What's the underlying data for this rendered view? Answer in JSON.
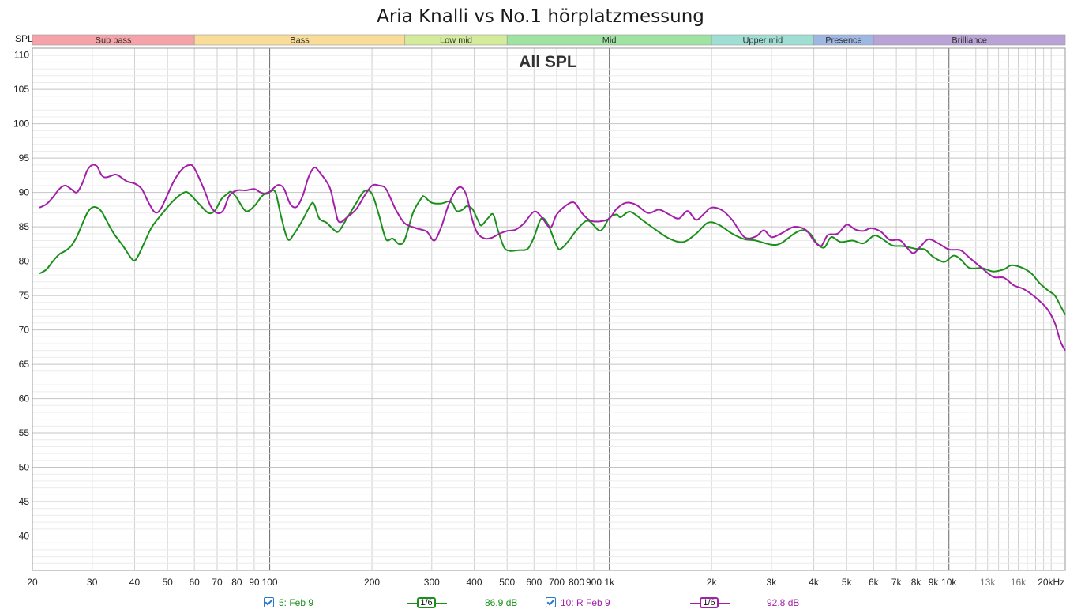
{
  "title": "Aria Knalli vs No.1 hörplatzmessung",
  "chart_data": {
    "type": "line",
    "title": "Aria Knalli vs No.1 hörplatzmessung",
    "subtitle": "All SPL",
    "ylabel": "SPL",
    "xscale": "log",
    "xunit": "Hz",
    "xlim": [
      20,
      22000
    ],
    "ylim": [
      35,
      111
    ],
    "yticks": [
      40,
      45,
      50,
      55,
      60,
      65,
      70,
      75,
      80,
      85,
      90,
      95,
      100,
      105,
      110
    ],
    "xticks": [
      {
        "v": 20,
        "label": "20"
      },
      {
        "v": 30,
        "label": "30"
      },
      {
        "v": 40,
        "label": "40"
      },
      {
        "v": 50,
        "label": "50"
      },
      {
        "v": 60,
        "label": "60"
      },
      {
        "v": 70,
        "label": "70"
      },
      {
        "v": 80,
        "label": "80"
      },
      {
        "v": 90,
        "label": "90"
      },
      {
        "v": 100,
        "label": "100"
      },
      {
        "v": 200,
        "label": "200"
      },
      {
        "v": 300,
        "label": "300"
      },
      {
        "v": 400,
        "label": "400"
      },
      {
        "v": 500,
        "label": "500"
      },
      {
        "v": 600,
        "label": "600"
      },
      {
        "v": 700,
        "label": "700"
      },
      {
        "v": 800,
        "label": "800"
      },
      {
        "v": 900,
        "label": "900"
      },
      {
        "v": 1000,
        "label": "1k"
      },
      {
        "v": 2000,
        "label": "2k"
      },
      {
        "v": 3000,
        "label": "3k"
      },
      {
        "v": 4000,
        "label": "4k"
      },
      {
        "v": 5000,
        "label": "5k"
      },
      {
        "v": 6000,
        "label": "6k"
      },
      {
        "v": 7000,
        "label": "7k"
      },
      {
        "v": 8000,
        "label": "8k"
      },
      {
        "v": 9000,
        "label": "9k"
      },
      {
        "v": 10000,
        "label": "10k"
      },
      {
        "v": 13000,
        "label": "13k",
        "minor": true
      },
      {
        "v": 16000,
        "label": "16k",
        "minor": true
      },
      {
        "v": 20000,
        "label": "20kHz"
      }
    ],
    "bands": [
      {
        "name": "Sub bass",
        "from": 20,
        "to": 60,
        "color": "#f5a3a8"
      },
      {
        "name": "Bass",
        "from": 60,
        "to": 250,
        "color": "#f9dc97"
      },
      {
        "name": "Low mid",
        "from": 250,
        "to": 500,
        "color": "#d4eb9c"
      },
      {
        "name": "Mid",
        "from": 500,
        "to": 2000,
        "color": "#9fe3a3"
      },
      {
        "name": "Upper mid",
        "from": 2000,
        "to": 4000,
        "color": "#9fded3"
      },
      {
        "name": "Presence",
        "from": 4000,
        "to": 6000,
        "color": "#9fb8e3"
      },
      {
        "name": "Brilliance",
        "from": 6000,
        "to": 22000,
        "color": "#b9a3d6"
      }
    ],
    "series": [
      {
        "name": "5: Feb 9",
        "color": "#1a8f1a",
        "smoothing": "1/6",
        "level": "86,9 dB",
        "points": [
          [
            21,
            78.2
          ],
          [
            22,
            78.8
          ],
          [
            23,
            80
          ],
          [
            24,
            81
          ],
          [
            25,
            81.5
          ],
          [
            26,
            82.2
          ],
          [
            27,
            83.5
          ],
          [
            28,
            85.3
          ],
          [
            29,
            87
          ],
          [
            30,
            87.8
          ],
          [
            31,
            87.8
          ],
          [
            32,
            87.2
          ],
          [
            33,
            86
          ],
          [
            34,
            84.8
          ],
          [
            35,
            83.8
          ],
          [
            37,
            82.2
          ],
          [
            39,
            80.5
          ],
          [
            40,
            80.1
          ],
          [
            41,
            80.8
          ],
          [
            43,
            83
          ],
          [
            45,
            85
          ],
          [
            48,
            86.8
          ],
          [
            52,
            88.8
          ],
          [
            56,
            90
          ],
          [
            58,
            89.8
          ],
          [
            62,
            88.3
          ],
          [
            66,
            87
          ],
          [
            69,
            87.4
          ],
          [
            72,
            89
          ],
          [
            75,
            89.8
          ],
          [
            77,
            90.1
          ],
          [
            80,
            89.2
          ],
          [
            85,
            87.3
          ],
          [
            90,
            88
          ],
          [
            95,
            89.5
          ],
          [
            100,
            90.1
          ],
          [
            104,
            90
          ],
          [
            108,
            86.5
          ],
          [
            113,
            83.2
          ],
          [
            118,
            84
          ],
          [
            125,
            86
          ],
          [
            132,
            88.2
          ],
          [
            135,
            88.3
          ],
          [
            140,
            86.2
          ],
          [
            147,
            85.6
          ],
          [
            155,
            84.5
          ],
          [
            160,
            84.4
          ],
          [
            170,
            86.5
          ],
          [
            180,
            88.5
          ],
          [
            190,
            90.2
          ],
          [
            200,
            89.8
          ],
          [
            210,
            86.6
          ],
          [
            220,
            83.2
          ],
          [
            230,
            83.3
          ],
          [
            240,
            82.5
          ],
          [
            248,
            82.8
          ],
          [
            255,
            84.5
          ],
          [
            265,
            87.2
          ],
          [
            280,
            89.2
          ],
          [
            285,
            89.4
          ],
          [
            300,
            88.5
          ],
          [
            320,
            88.4
          ],
          [
            335,
            88.7
          ],
          [
            345,
            88.4
          ],
          [
            355,
            87.3
          ],
          [
            370,
            87.5
          ],
          [
            380,
            88
          ],
          [
            395,
            87.6
          ],
          [
            410,
            86
          ],
          [
            420,
            85.2
          ],
          [
            440,
            86.3
          ],
          [
            455,
            86.8
          ],
          [
            470,
            84.5
          ],
          [
            490,
            82
          ],
          [
            510,
            81.5
          ],
          [
            540,
            81.6
          ],
          [
            575,
            81.8
          ],
          [
            600,
            83.5
          ],
          [
            630,
            86.2
          ],
          [
            660,
            85.3
          ],
          [
            700,
            82.2
          ],
          [
            720,
            81.8
          ],
          [
            760,
            83
          ],
          [
            800,
            84.5
          ],
          [
            850,
            85.8
          ],
          [
            880,
            85.7
          ],
          [
            930,
            84.5
          ],
          [
            960,
            84.8
          ],
          [
            1000,
            86.3
          ],
          [
            1050,
            86.8
          ],
          [
            1080,
            86.4
          ],
          [
            1150,
            87.2
          ],
          [
            1250,
            86
          ],
          [
            1350,
            84.8
          ],
          [
            1500,
            83.3
          ],
          [
            1650,
            82.8
          ],
          [
            1800,
            84
          ],
          [
            1950,
            85.6
          ],
          [
            2100,
            85.3
          ],
          [
            2300,
            84
          ],
          [
            2500,
            83.2
          ],
          [
            2700,
            83
          ],
          [
            3000,
            82.4
          ],
          [
            3200,
            82.6
          ],
          [
            3500,
            84
          ],
          [
            3700,
            84.5
          ],
          [
            3900,
            84
          ],
          [
            4100,
            82.5
          ],
          [
            4300,
            82
          ],
          [
            4500,
            83.5
          ],
          [
            4800,
            82.8
          ],
          [
            5200,
            83
          ],
          [
            5600,
            82.6
          ],
          [
            6000,
            83.7
          ],
          [
            6300,
            83.4
          ],
          [
            6800,
            82.3
          ],
          [
            7300,
            82.2
          ],
          [
            8000,
            81.8
          ],
          [
            8500,
            81.7
          ],
          [
            9000,
            80.6
          ],
          [
            9700,
            79.9
          ],
          [
            10300,
            80.8
          ],
          [
            10800,
            80.3
          ],
          [
            11500,
            79
          ],
          [
            12500,
            79
          ],
          [
            13500,
            78.5
          ],
          [
            14500,
            78.8
          ],
          [
            15300,
            79.4
          ],
          [
            16500,
            79
          ],
          [
            17500,
            78.2
          ],
          [
            18500,
            76.8
          ],
          [
            19500,
            75.8
          ],
          [
            20500,
            75
          ],
          [
            21300,
            73.5
          ],
          [
            22000,
            72.2
          ]
        ]
      },
      {
        "name": "10: R Feb 9",
        "color": "#a21fa8",
        "smoothing": "1/6",
        "level": "92,8 dB",
        "points": [
          [
            21,
            87.8
          ],
          [
            22,
            88.3
          ],
          [
            23,
            89.3
          ],
          [
            24,
            90.5
          ],
          [
            25,
            91
          ],
          [
            26,
            90.5
          ],
          [
            27,
            90
          ],
          [
            28,
            91.2
          ],
          [
            29,
            93.2
          ],
          [
            30,
            94
          ],
          [
            31,
            93.8
          ],
          [
            32,
            92.5
          ],
          [
            33,
            92.2
          ],
          [
            35,
            92.6
          ],
          [
            36,
            92.4
          ],
          [
            38,
            91.6
          ],
          [
            40,
            91.3
          ],
          [
            42,
            90.5
          ],
          [
            44,
            88.5
          ],
          [
            46,
            87.1
          ],
          [
            48,
            87.8
          ],
          [
            52,
            91.5
          ],
          [
            55,
            93.3
          ],
          [
            58,
            94
          ],
          [
            60,
            93.5
          ],
          [
            64,
            90.5
          ],
          [
            67,
            88
          ],
          [
            70,
            87
          ],
          [
            73,
            87.4
          ],
          [
            76,
            89.5
          ],
          [
            80,
            90.3
          ],
          [
            85,
            90.3
          ],
          [
            90,
            90.5
          ],
          [
            94,
            90
          ],
          [
            98,
            89.8
          ],
          [
            102,
            90.5
          ],
          [
            106,
            91.1
          ],
          [
            110,
            90.6
          ],
          [
            115,
            88.3
          ],
          [
            120,
            87.9
          ],
          [
            125,
            89.5
          ],
          [
            130,
            92.2
          ],
          [
            135,
            93.6
          ],
          [
            140,
            93
          ],
          [
            150,
            90.8
          ],
          [
            155,
            88
          ],
          [
            160,
            85.7
          ],
          [
            170,
            86.5
          ],
          [
            180,
            87.6
          ],
          [
            190,
            89.5
          ],
          [
            200,
            91
          ],
          [
            210,
            91
          ],
          [
            220,
            90.5
          ],
          [
            235,
            87.5
          ],
          [
            250,
            85.5
          ],
          [
            270,
            84.8
          ],
          [
            290,
            84.3
          ],
          [
            305,
            83
          ],
          [
            320,
            85
          ],
          [
            335,
            88
          ],
          [
            350,
            90
          ],
          [
            365,
            90.8
          ],
          [
            380,
            89.5
          ],
          [
            395,
            86
          ],
          [
            410,
            84
          ],
          [
            430,
            83.3
          ],
          [
            450,
            83.4
          ],
          [
            475,
            84
          ],
          [
            500,
            84.4
          ],
          [
            530,
            84.6
          ],
          [
            560,
            85.5
          ],
          [
            600,
            87.2
          ],
          [
            630,
            86.5
          ],
          [
            670,
            84.9
          ],
          [
            700,
            86.8
          ],
          [
            750,
            88.2
          ],
          [
            790,
            88.5
          ],
          [
            830,
            87
          ],
          [
            880,
            85.9
          ],
          [
            940,
            85.8
          ],
          [
            1000,
            86.2
          ],
          [
            1050,
            87.6
          ],
          [
            1120,
            88.5
          ],
          [
            1200,
            88.2
          ],
          [
            1300,
            87
          ],
          [
            1400,
            87.5
          ],
          [
            1500,
            86.8
          ],
          [
            1600,
            86.2
          ],
          [
            1700,
            87.3
          ],
          [
            1800,
            86
          ],
          [
            1900,
            86.9
          ],
          [
            2000,
            87.8
          ],
          [
            2150,
            87.4
          ],
          [
            2300,
            86
          ],
          [
            2500,
            83.5
          ],
          [
            2700,
            83.6
          ],
          [
            2850,
            84.5
          ],
          [
            3000,
            83.5
          ],
          [
            3200,
            84
          ],
          [
            3500,
            85
          ],
          [
            3800,
            84.5
          ],
          [
            4000,
            83
          ],
          [
            4200,
            82.2
          ],
          [
            4400,
            83.8
          ],
          [
            4700,
            84
          ],
          [
            5000,
            85.3
          ],
          [
            5300,
            84.6
          ],
          [
            5600,
            84.4
          ],
          [
            5900,
            84.8
          ],
          [
            6300,
            84.3
          ],
          [
            6700,
            83.1
          ],
          [
            7200,
            83
          ],
          [
            7800,
            81.2
          ],
          [
            8200,
            82
          ],
          [
            8700,
            83.2
          ],
          [
            9300,
            82.6
          ],
          [
            10000,
            81.7
          ],
          [
            10800,
            81.6
          ],
          [
            11500,
            80.5
          ],
          [
            12500,
            79
          ],
          [
            13500,
            77.7
          ],
          [
            14500,
            77.6
          ],
          [
            15500,
            76.5
          ],
          [
            16500,
            76
          ],
          [
            17500,
            75.2
          ],
          [
            18500,
            74.2
          ],
          [
            19500,
            73
          ],
          [
            20500,
            71
          ],
          [
            21300,
            68.3
          ],
          [
            22000,
            67
          ]
        ]
      }
    ]
  },
  "legend": [
    {
      "label": "5: Feb 9",
      "smoothing": "1/6",
      "level": "86,9 dB",
      "color": "#1a8f1a"
    },
    {
      "label": "10: R Feb 9",
      "smoothing": "1/6",
      "level": "92,8 dB",
      "color": "#a21fa8"
    }
  ]
}
